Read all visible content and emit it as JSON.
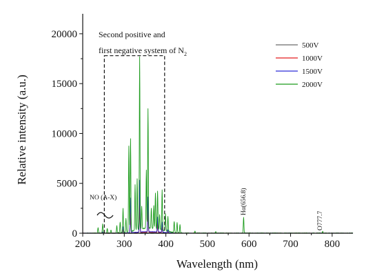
{
  "chart_data": {
    "type": "line",
    "xlabel": "Wavelength (nm)",
    "ylabel": "Relative intensity (a.u.)",
    "xlim": [
      200,
      850
    ],
    "ylim": [
      0,
      22000
    ],
    "xticks": [
      200,
      300,
      400,
      500,
      600,
      700,
      800
    ],
    "yticks": [
      0,
      5000,
      10000,
      15000,
      20000
    ],
    "legend_position": "top-right",
    "series": [
      {
        "name": "500V",
        "color": "#6a6a6a",
        "peaks": [
          [
            248,
            60
          ],
          [
            297,
            250
          ],
          [
            315,
            1500
          ],
          [
            337,
            2300
          ],
          [
            357,
            1500
          ],
          [
            380,
            700
          ],
          [
            391,
            400
          ],
          [
            405,
            150
          ]
        ]
      },
      {
        "name": "1000V",
        "color": "#e41a1c",
        "peaks": [
          [
            248,
            100
          ],
          [
            297,
            450
          ],
          [
            315,
            2500
          ],
          [
            337,
            3800
          ],
          [
            357,
            2300
          ],
          [
            380,
            1000
          ],
          [
            391,
            700
          ],
          [
            405,
            200
          ]
        ]
      },
      {
        "name": "1500V",
        "color": "#2b2bd6",
        "peaks": [
          [
            248,
            150
          ],
          [
            297,
            650
          ],
          [
            315,
            3500
          ],
          [
            337,
            5200
          ],
          [
            357,
            3500
          ],
          [
            380,
            1500
          ],
          [
            391,
            1000
          ],
          [
            405,
            300
          ]
        ]
      },
      {
        "name": "2000V",
        "color": "#1a9a1a",
        "peaks": [
          [
            237,
            600
          ],
          [
            248,
            900
          ],
          [
            259,
            500
          ],
          [
            268,
            350
          ],
          [
            282,
            700
          ],
          [
            290,
            1100
          ],
          [
            297,
            2400
          ],
          [
            304,
            1400
          ],
          [
            311,
            8600
          ],
          [
            315,
            9300
          ],
          [
            326,
            4600
          ],
          [
            331,
            5100
          ],
          [
            337,
            17300
          ],
          [
            342,
            2300
          ],
          [
            353,
            5800
          ],
          [
            357,
            12000
          ],
          [
            365,
            2000
          ],
          [
            371,
            2300
          ],
          [
            375,
            3600
          ],
          [
            380,
            3800
          ],
          [
            385,
            1500
          ],
          [
            391,
            4000
          ],
          [
            399,
            1700
          ],
          [
            405,
            1500
          ],
          [
            420,
            1100
          ],
          [
            427,
            1000
          ],
          [
            434,
            800
          ],
          [
            470,
            200
          ],
          [
            520,
            150
          ],
          [
            587,
            1600
          ],
          [
            777,
            200
          ]
        ]
      }
    ],
    "annotations": {
      "box_label_line1": "Second positive and",
      "box_label_line2": "first negative system of N",
      "box_label_subscript": "2",
      "box_range": [
        252,
        397
      ],
      "box_top": 17800,
      "no_label": "NO (A-X)",
      "h_alpha_label": "Hα(656.8)",
      "o_label": "O777.7"
    }
  }
}
